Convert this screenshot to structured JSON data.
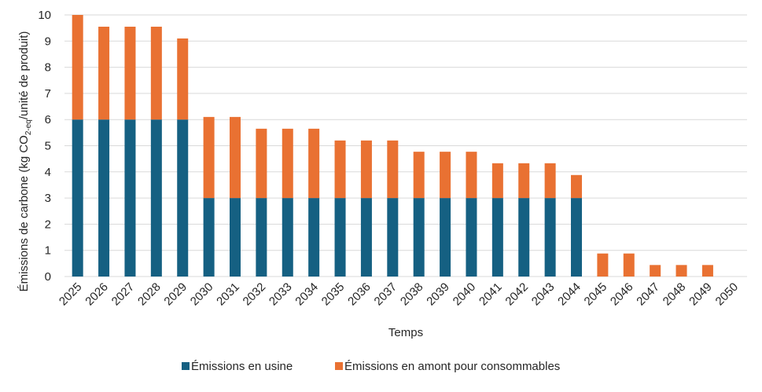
{
  "chart_data": {
    "type": "bar",
    "stacked": true,
    "xlabel": "Temps",
    "ylabel_parts": {
      "before": "Émissions de carbone (kg CO",
      "subscript": "2-eq",
      "after": "/unité de produit)"
    },
    "ylim": [
      0,
      10
    ],
    "yticks": [
      "0",
      "1",
      "2",
      "3",
      "4",
      "5",
      "6",
      "7",
      "8",
      "9",
      "10"
    ],
    "grid": true,
    "legend_position": "bottom",
    "categories": [
      "2025",
      "2026",
      "2027",
      "2028",
      "2029",
      "2030",
      "2031",
      "2032",
      "2033",
      "2034",
      "2035",
      "2036",
      "2037",
      "2038",
      "2039",
      "2040",
      "2041",
      "2042",
      "2043",
      "2044",
      "2045",
      "2046",
      "2047",
      "2048",
      "2049",
      "2050"
    ],
    "series": [
      {
        "name": "Émissions en usine",
        "color": "#156082",
        "values": [
          6,
          6,
          6,
          6,
          6,
          3,
          3,
          3,
          3,
          3,
          3,
          3,
          3,
          3,
          3,
          3,
          3,
          3,
          3,
          3,
          0,
          0,
          0,
          0,
          0,
          0
        ]
      },
      {
        "name": "Émissions en amont pour consommables",
        "color": "#E97132",
        "values": [
          4,
          3.55,
          3.55,
          3.55,
          3.1,
          3.1,
          3.1,
          2.65,
          2.65,
          2.65,
          2.2,
          2.2,
          2.2,
          1.77,
          1.77,
          1.77,
          1.33,
          1.33,
          1.33,
          0.88,
          0.88,
          0.88,
          0.44,
          0.44,
          0.44,
          0
        ]
      }
    ]
  }
}
